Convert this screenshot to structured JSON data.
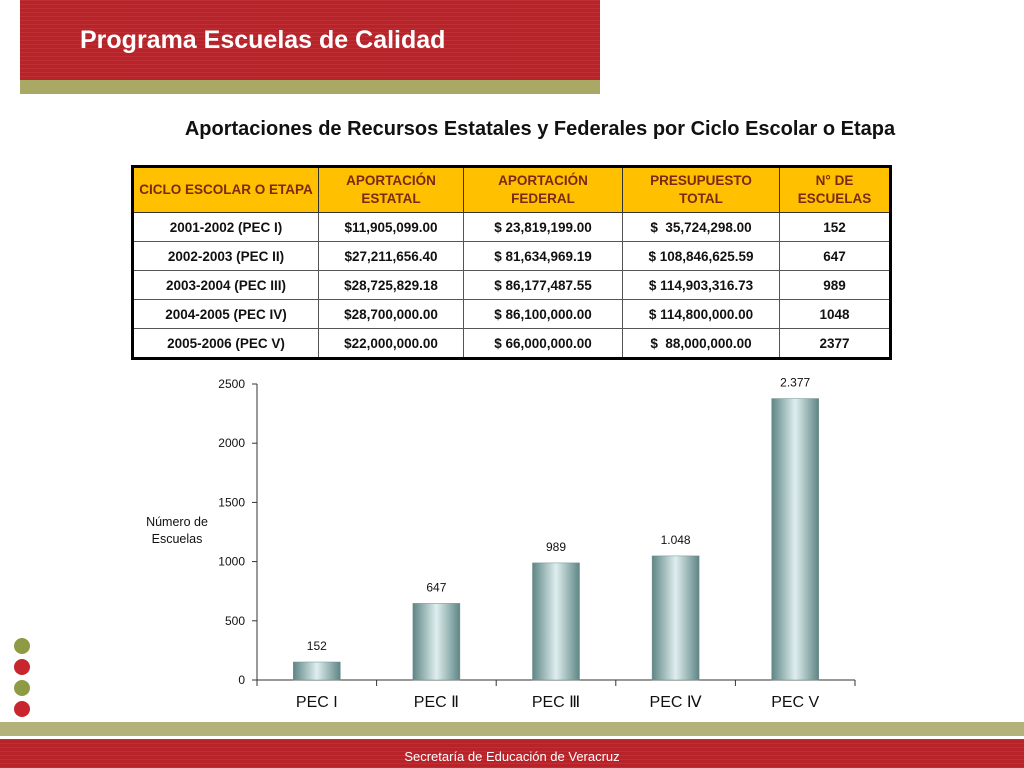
{
  "header": {
    "title": "Programa Escuelas de Calidad"
  },
  "slide": {
    "title": "Aportaciones de Recursos Estatales y Federales por Ciclo Escolar o Etapa"
  },
  "table": {
    "headers": [
      "CICLO ESCOLAR O ETAPA",
      "APORTACIÓN ESTATAL",
      "APORTACIÓN FEDERAL",
      "PRESUPUESTO TOTAL",
      "N° DE ESCUELAS"
    ],
    "rows": [
      [
        "2001-2002 (PEC I)",
        "$11,905,099.00",
        "$ 23,819,199.00",
        "$  35,724,298.00",
        "152"
      ],
      [
        "2002-2003 (PEC II)",
        "$27,211,656.40",
        "$ 81,634,969.19",
        "$ 108,846,625.59",
        "647"
      ],
      [
        "2003-2004 (PEC III)",
        "$28,725,829.18",
        "$ 86,177,487.55",
        "$ 114,903,316.73",
        "989"
      ],
      [
        "2004-2005 (PEC IV)",
        "$28,700,000.00",
        "$ 86,100,000.00",
        "$ 114,800,000.00",
        "1048"
      ],
      [
        "2005-2006 (PEC V)",
        "$22,000,000.00",
        "$ 66,000,000.00",
        "$  88,000,000.00",
        "2377"
      ]
    ]
  },
  "chart_data": {
    "type": "bar",
    "categories": [
      "PEC I",
      "PEC Ⅱ",
      "PEC Ⅲ",
      "PEC Ⅳ",
      "PEC V"
    ],
    "values": [
      152,
      647,
      989,
      1048,
      2377
    ],
    "data_labels": [
      "152",
      "647",
      "989",
      "1.048",
      "2.377"
    ],
    "ylabel": "Número de\nEscuelas",
    "yticks": [
      0,
      500,
      1000,
      1500,
      2000,
      2500
    ],
    "ylim": [
      0,
      2500
    ],
    "grid": false,
    "bar_color": "#8fb0b0"
  },
  "footer": {
    "text": "Secretaría de Educación de Veracruz"
  },
  "colors": {
    "brand_red": "#b8232a",
    "olive": "#a9a865",
    "header_yellow": "#ffc000"
  }
}
